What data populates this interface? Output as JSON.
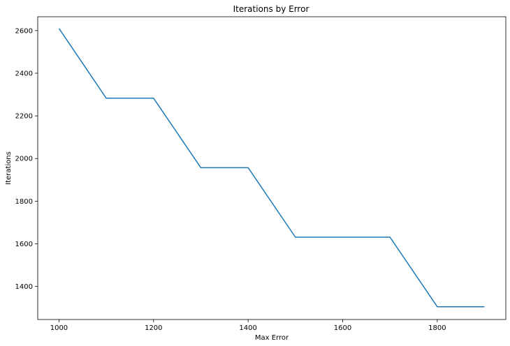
{
  "chart_data": {
    "type": "line",
    "title": "Iterations by Error",
    "xlabel": "Max Error",
    "ylabel": "Iterations",
    "xlim": [
      955,
      1945
    ],
    "ylim": [
      1245,
      2665
    ],
    "x_ticks": [
      1000,
      1200,
      1400,
      1600,
      1800
    ],
    "y_ticks": [
      1400,
      1600,
      1800,
      2000,
      2200,
      2400,
      2600
    ],
    "grid": false,
    "series": [
      {
        "color": "#1f77b4",
        "x": [
          1000,
          1100,
          1200,
          1300,
          1400,
          1500,
          1600,
          1700,
          1800,
          1900
        ],
        "y": [
          2610,
          2283,
          2283,
          1957,
          1957,
          1631,
          1631,
          1631,
          1305,
          1305
        ]
      }
    ]
  }
}
